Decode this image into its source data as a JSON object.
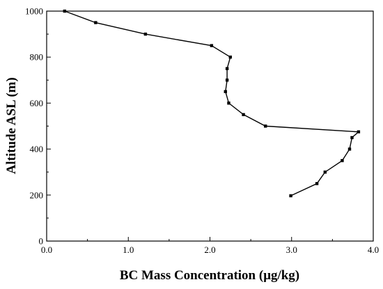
{
  "chart_data": {
    "type": "line",
    "title": "",
    "xlabel": "BC Mass Concentration (μg/kg)",
    "ylabel": "Altitude ASL (m)",
    "xlim": [
      0,
      4.0
    ],
    "ylim": [
      0,
      1000
    ],
    "x_ticks": [
      "0.0",
      "1.0",
      "2.0",
      "3.0",
      "4.0"
    ],
    "y_ticks": [
      "0",
      "200",
      "400",
      "600",
      "800",
      "1000"
    ],
    "grid": false,
    "legend": "none",
    "series": [
      {
        "x": [
          2.99,
          3.31,
          3.41,
          3.62,
          3.71,
          3.74,
          3.82,
          2.68,
          2.41,
          2.23,
          2.19,
          2.21,
          2.21,
          2.25,
          2.02,
          1.21,
          0.6,
          0.22
        ],
        "y": [
          197,
          250,
          300,
          350,
          400,
          450,
          475,
          500,
          550,
          600,
          650,
          700,
          750,
          800,
          850,
          900,
          950,
          1000
        ]
      }
    ]
  }
}
